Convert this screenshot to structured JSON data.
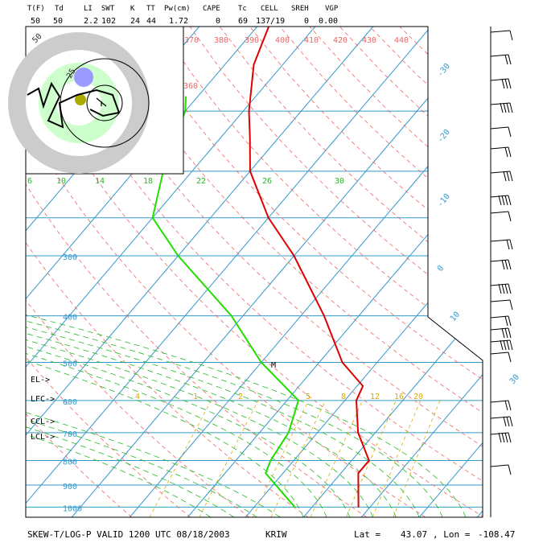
{
  "header": {
    "labels": [
      "T(F)",
      "Td",
      "LI",
      "SWT",
      "K",
      "TT",
      "Pw(cm)",
      "CAPE",
      "Tc",
      "CELL",
      "SREH",
      "VGP"
    ],
    "values": [
      "50",
      "50",
      "2.2",
      "102",
      "24",
      "44",
      "1.72",
      "0",
      "69",
      "137/19",
      "0",
      "0.00"
    ]
  },
  "footer": {
    "title": "SKEW-T/LOG-P VALID 1200 UTC 08/18/2003",
    "station": "KRIW",
    "lat_label": "Lat =",
    "lat_value": "43.07",
    "lon_label": ", Lon =",
    "lon_value": "-108.47"
  },
  "levels": [
    "EL->",
    "LFC->",
    "CCL->",
    "LCL->"
  ],
  "hodograph_labels": [
    "50",
    "25"
  ],
  "colors": {
    "temperature": "#dd0000",
    "dewpoint": "#22dd00",
    "isobar": "#3399cc",
    "isotherm": "#3399cc",
    "dry_adiabat": "#ee6666",
    "moist_adiabat": "#22bb22",
    "mixing_ratio": "#ddaa00",
    "hodo_ring": "#cccccc",
    "hodo_inner": "#ccffcc",
    "storm_motion": "#9999ff",
    "mean_wind": "#aaaa00"
  },
  "chart_data": {
    "type": "skew-t log-p",
    "pressure_levels": [
      "300",
      "400",
      "500",
      "600",
      "700",
      "800",
      "900",
      "1000"
    ],
    "isotherm_labels": [
      "-30",
      "-20",
      "-10",
      "0",
      "10",
      "30"
    ],
    "dry_adiabat_labels": [
      "370",
      "380",
      "390",
      "400",
      "410",
      "420",
      "430",
      "440",
      "360"
    ],
    "moist_adiabat_labels": [
      "6",
      "10",
      "14",
      "18",
      "22",
      "26",
      "30"
    ],
    "mixing_ratio_labels": [
      "1",
      "2",
      "4",
      "5",
      "8",
      "12",
      "16",
      "20"
    ],
    "temperature_profile": [
      {
        "p": 1000,
        "t": 18
      },
      {
        "p": 850,
        "t": 13
      },
      {
        "p": 800,
        "t": 13
      },
      {
        "p": 700,
        "t": 7
      },
      {
        "p": 600,
        "t": 2
      },
      {
        "p": 560,
        "t": 1
      },
      {
        "p": 500,
        "t": -6
      },
      {
        "p": 400,
        "t": -16
      },
      {
        "p": 300,
        "t": -30
      },
      {
        "p": 250,
        "t": -40
      },
      {
        "p": 200,
        "t": -50
      },
      {
        "p": 170,
        "t": -55
      },
      {
        "p": 150,
        "t": -59
      },
      {
        "p": 120,
        "t": -65
      },
      {
        "p": 100,
        "t": -68
      }
    ],
    "dewpoint_profile": [
      {
        "p": 1000,
        "t": 7
      },
      {
        "p": 850,
        "t": -3
      },
      {
        "p": 800,
        "t": -4
      },
      {
        "p": 700,
        "t": -5
      },
      {
        "p": 600,
        "t": -8
      },
      {
        "p": 500,
        "t": -20
      },
      {
        "p": 400,
        "t": -32
      },
      {
        "p": 300,
        "t": -50
      },
      {
        "p": 250,
        "t": -60
      },
      {
        "p": 200,
        "t": -65
      },
      {
        "p": 150,
        "t": -70
      },
      {
        "p": 140,
        "t": -72
      }
    ]
  }
}
